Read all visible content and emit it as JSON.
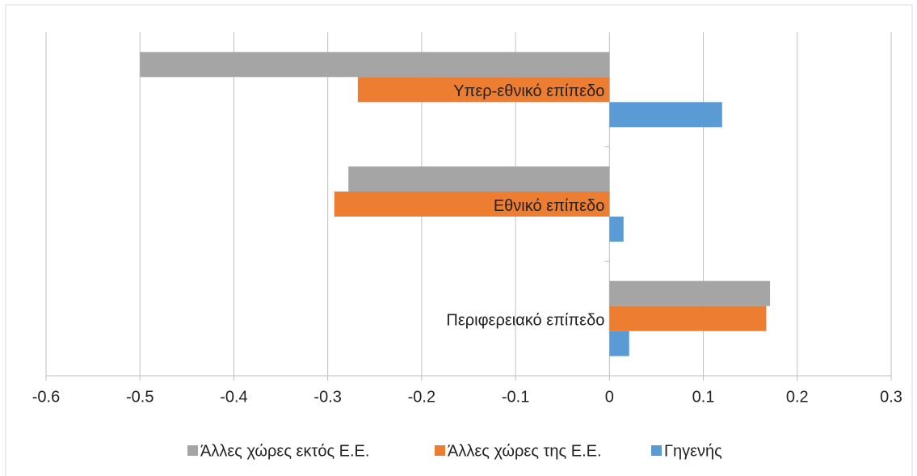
{
  "chart_data": {
    "type": "hbar",
    "categories": [
      "Υπερ-εθνικό επίπεδο",
      "Εθνικό επίπεδο",
      "Περιφερειακό επίπεδο"
    ],
    "series": [
      {
        "name": "Άλλες χώρες εκτός Ε.Ε.",
        "color": "#a5a5a5",
        "values": [
          -0.5,
          -0.278,
          0.171
        ]
      },
      {
        "name": "Άλλες χώρες της Ε.Ε.",
        "color": "#ed7d31",
        "values": [
          -0.268,
          -0.293,
          0.167
        ]
      },
      {
        "name": "Γηγενής",
        "color": "#5b9bd5",
        "values": [
          0.12,
          0.015,
          0.021
        ]
      }
    ],
    "xlim": [
      -0.6,
      0.3
    ],
    "xticks": [
      -0.6,
      -0.5,
      -0.4,
      -0.3,
      -0.2,
      -0.1,
      0,
      0.1,
      0.2,
      0.3
    ],
    "grid": true,
    "legend": "bottom"
  }
}
